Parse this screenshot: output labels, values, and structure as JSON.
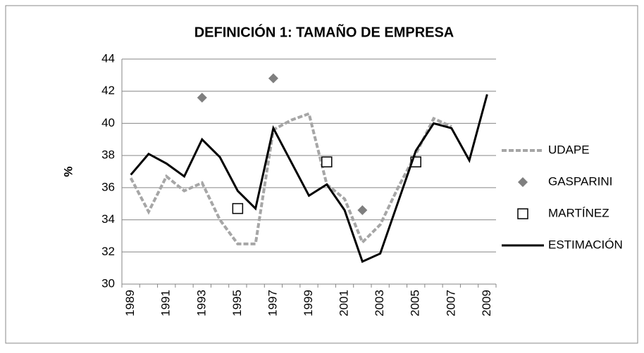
{
  "chart_data": {
    "type": "line",
    "title": "DEFINICIÓN 1: TAMAÑO DE EMPRESA",
    "y_label": "%",
    "categories": [
      "1989",
      null,
      "1991",
      null,
      "1993",
      null,
      "1995",
      null,
      "1997",
      null,
      "1999",
      null,
      "2001",
      null,
      "2003",
      null,
      "2005",
      null,
      "2007",
      null,
      "2009"
    ],
    "ylim": [
      30,
      44
    ],
    "yticks": [
      30,
      32,
      34,
      36,
      38,
      40,
      42,
      44
    ],
    "grid": true,
    "legend": "right",
    "series": [
      {
        "name": "UDAPE",
        "color": "#a6a6a6",
        "marker": "dashed-line",
        "values": [
          36.6,
          34.5,
          36.7,
          35.8,
          36.3,
          34.0,
          32.5,
          32.5,
          39.6,
          40.2,
          40.6,
          36.2,
          35.3,
          32.6,
          33.7,
          36.0,
          38.1,
          40.3,
          39.8,
          null,
          null
        ]
      },
      {
        "name": "GASPARINI",
        "color": "#7f7f7f",
        "marker": "diamond",
        "values": [
          null,
          null,
          null,
          null,
          41.6,
          null,
          null,
          null,
          42.8,
          null,
          null,
          null,
          null,
          34.6,
          null,
          null,
          null,
          null,
          null,
          null,
          null
        ]
      },
      {
        "name": "MARTÍNEZ",
        "color": "#000000",
        "marker": "square",
        "values": [
          null,
          null,
          null,
          null,
          null,
          null,
          34.7,
          null,
          null,
          null,
          null,
          37.6,
          null,
          null,
          null,
          null,
          37.6,
          null,
          null,
          null,
          null
        ]
      },
      {
        "name": "ESTIMACIÓN",
        "color": "#000000",
        "marker": "solid-line",
        "values": [
          36.8,
          38.1,
          37.5,
          36.7,
          39.0,
          37.9,
          35.8,
          34.7,
          39.7,
          37.6,
          35.5,
          36.2,
          34.6,
          31.4,
          31.9,
          35.1,
          38.3,
          40.0,
          39.7,
          37.7,
          41.8
        ]
      }
    ]
  }
}
